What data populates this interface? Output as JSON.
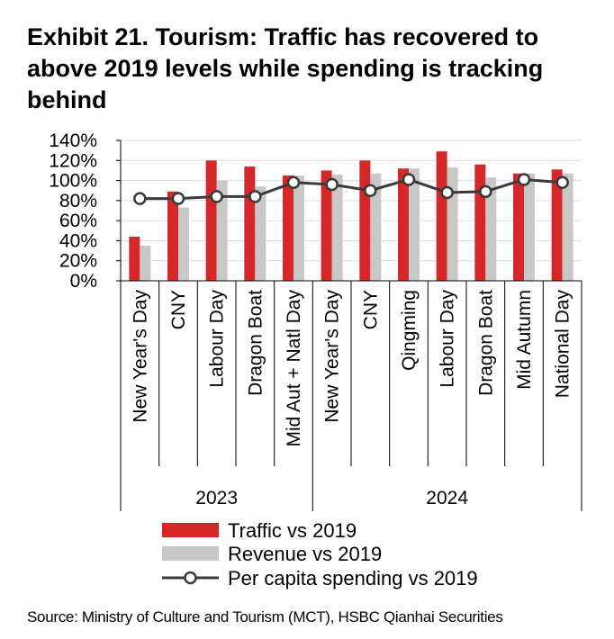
{
  "title": "Exhibit 21. Tourism: Traffic has recovered to above 2019 levels while spending is tracking behind",
  "source": "Source: Ministry of Culture and Tourism (MCT), HSBC Qianhai Securities",
  "chart_data": {
    "type": "bar",
    "title": "Exhibit 21. Tourism: Traffic has recovered to above 2019 levels while spending is tracking behind",
    "categories": [
      "New Year's Day",
      "CNY",
      "Labour Day",
      "Dragon Boat",
      "Mid Aut + Natl Day",
      "New Year's Day",
      "CNY",
      "Qingming",
      "Labour Day",
      "Dragon Boat",
      "Mid Autumn",
      "National Day"
    ],
    "groups": [
      {
        "label": "2023",
        "count": 5
      },
      {
        "label": "2024",
        "count": 7
      }
    ],
    "series": [
      {
        "name": "Traffic vs 2019",
        "type": "bar",
        "color": "#d62728",
        "values": [
          44,
          89,
          120,
          114,
          105,
          110,
          120,
          112,
          129,
          116,
          107,
          111
        ]
      },
      {
        "name": "Revenue vs 2019",
        "type": "bar",
        "color": "#c8c8c8",
        "values": [
          35,
          73,
          100,
          94,
          105,
          106,
          107,
          112,
          113,
          103,
          107,
          107
        ]
      },
      {
        "name": "Per capita spending vs 2019",
        "type": "line",
        "color": "#3a3a3a",
        "values": [
          82,
          82,
          84,
          84,
          98,
          96,
          90,
          101,
          88,
          89,
          101,
          98
        ]
      }
    ],
    "yticks": [
      "0%",
      "20%",
      "40%",
      "60%",
      "80%",
      "100%",
      "120%",
      "140%"
    ],
    "ylim": [
      0,
      140
    ],
    "ystep": 20,
    "grid": true,
    "legend": "bottom"
  }
}
